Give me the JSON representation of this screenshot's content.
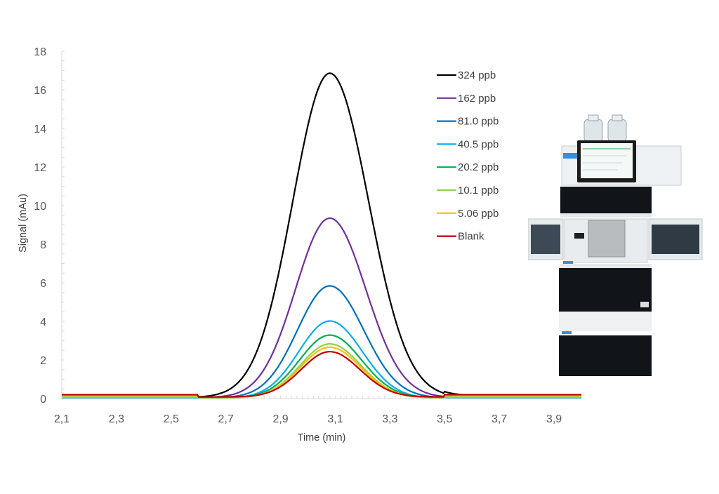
{
  "chart_data": {
    "type": "line",
    "title": "",
    "xlabel": "Time (min)",
    "ylabel": "Signal (mAu)",
    "xlim": [
      2.1,
      4.0
    ],
    "ylim": [
      0,
      18
    ],
    "x_ticks": [
      "2,1",
      "2,3",
      "2,5",
      "2,7",
      "2,9",
      "3,1",
      "3,3",
      "3,5",
      "3,7",
      "3,9"
    ],
    "x_tick_values": [
      2.1,
      2.3,
      2.5,
      2.7,
      2.9,
      3.1,
      3.3,
      3.5,
      3.7,
      3.9
    ],
    "y_ticks": [
      0,
      2,
      4,
      6,
      8,
      10,
      12,
      14,
      16,
      18
    ],
    "grid": false,
    "legend_position": "upper right (inside plot area)",
    "peak_retention_time_min": 3.08,
    "series": [
      {
        "name": "324 ppb",
        "color": "#000000",
        "peak_height": 16.8,
        "peak_time": 3.08,
        "sigma": 0.135,
        "baseline": 0.15
      },
      {
        "name": "162 ppb",
        "color": "#7030A0",
        "peak_height": 9.3,
        "peak_time": 3.08,
        "sigma": 0.125,
        "baseline": 0.12
      },
      {
        "name": "81.0 ppb",
        "color": "#0070C0",
        "peak_height": 5.8,
        "peak_time": 3.08,
        "sigma": 0.118,
        "baseline": 0.1
      },
      {
        "name": "40.5 ppb",
        "color": "#00B0F0",
        "peak_height": 4.0,
        "peak_time": 3.08,
        "sigma": 0.113,
        "baseline": 0.05
      },
      {
        "name": "20.2 ppb",
        "color": "#00B050",
        "peak_height": 3.25,
        "peak_time": 3.08,
        "sigma": 0.11,
        "baseline": 0.1
      },
      {
        "name": "10.1 ppb",
        "color": "#92D050",
        "peak_height": 2.8,
        "peak_time": 3.08,
        "sigma": 0.108,
        "baseline": 0.08
      },
      {
        "name": "5.06 ppb",
        "color": "#FFC000",
        "peak_height": 2.6,
        "peak_time": 3.08,
        "sigma": 0.107,
        "baseline": 0.15
      },
      {
        "name": "Blank",
        "color": "#C00000",
        "peak_height": 2.35,
        "peak_time": 3.08,
        "sigma": 0.105,
        "baseline": 0.2
      }
    ]
  },
  "legend": {
    "items": [
      "324 ppb",
      "162 ppb",
      "81.0 ppb",
      "40.5 ppb",
      "20.2 ppb",
      "10.1 ppb",
      "5.06 ppb",
      "Blank"
    ]
  },
  "instrument_photo": {
    "description": "HPLC instrument stack with two solvent bottles, touchscreen and open column compartment"
  }
}
